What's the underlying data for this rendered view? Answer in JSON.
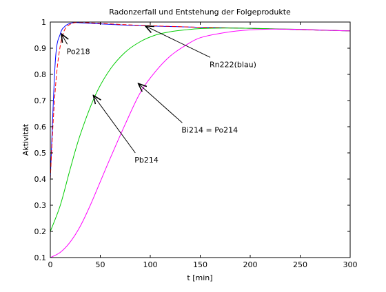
{
  "chart_data": {
    "type": "line",
    "title": "Radonzerfall und Entstehung der Folgeprodukte",
    "xlabel": "t [min]",
    "ylabel": "Aktivität",
    "xlim": [
      0,
      300
    ],
    "ylim": [
      0.1,
      1
    ],
    "xticks": [
      0,
      50,
      100,
      150,
      200,
      250,
      300
    ],
    "yticks": [
      0.1,
      0.2,
      0.3,
      0.4,
      0.5,
      0.6,
      0.7,
      0.8,
      0.9,
      1
    ],
    "xtick_labels": [
      "0",
      "50",
      "100",
      "150",
      "200",
      "250",
      "300"
    ],
    "ytick_labels": [
      "0.1",
      "0.2",
      "0.3",
      "0.4",
      "0.5",
      "0.6",
      "0.7",
      "0.8",
      "0.9",
      "1"
    ],
    "grid": false,
    "legend": "none",
    "series": [
      {
        "color": "#0000ff",
        "dash": "solid",
        "x": [
          0,
          5,
          10,
          15,
          20,
          25,
          30,
          40,
          50,
          75,
          100,
          150,
          200,
          250,
          300
        ],
        "y": [
          0.4,
          0.85,
          0.955,
          0.985,
          0.995,
          0.998,
          0.997,
          0.995,
          0.993,
          0.988,
          0.985,
          0.98,
          0.976,
          0.971,
          0.966
        ]
      },
      {
        "color": "#ff0000",
        "dash": "dashed",
        "x": [
          0,
          2,
          4,
          6,
          8,
          10,
          12,
          15,
          20,
          25,
          30,
          40,
          50,
          75,
          100,
          150,
          200,
          250,
          300
        ],
        "y": [
          0.4,
          0.56,
          0.69,
          0.79,
          0.86,
          0.91,
          0.945,
          0.975,
          0.992,
          0.998,
          0.999,
          0.997,
          0.995,
          0.99,
          0.986,
          0.98,
          0.976,
          0.971,
          0.966
        ]
      },
      {
        "color": "#00cc00",
        "dash": "solid",
        "x": [
          0,
          10,
          20,
          30,
          45,
          60,
          75,
          90,
          105,
          120,
          135,
          150,
          175,
          200,
          225,
          250,
          275,
          300
        ],
        "y": [
          0.2,
          0.3,
          0.44,
          0.57,
          0.72,
          0.82,
          0.885,
          0.925,
          0.95,
          0.963,
          0.97,
          0.975,
          0.977,
          0.976,
          0.974,
          0.972,
          0.969,
          0.966
        ]
      },
      {
        "color": "#ff00ff",
        "dash": "solid",
        "x": [
          0,
          10,
          20,
          30,
          40,
          50,
          60,
          75,
          90,
          105,
          120,
          135,
          150,
          175,
          200,
          225,
          250,
          275,
          300
        ],
        "y": [
          0.1,
          0.12,
          0.16,
          0.22,
          0.3,
          0.39,
          0.48,
          0.61,
          0.73,
          0.81,
          0.87,
          0.91,
          0.94,
          0.96,
          0.97,
          0.973,
          0.972,
          0.969,
          0.966
        ]
      }
    ],
    "annotations": [
      {
        "text": "Po218",
        "from": [
          17,
          0.915
        ],
        "to": [
          11,
          0.955
        ]
      },
      {
        "text": "Rn222(blau)",
        "from": [
          160,
          0.865
        ],
        "to": [
          95,
          0.985
        ]
      },
      {
        "text": "Bi214 = Po214",
        "from": [
          132,
          0.615
        ],
        "to": [
          88,
          0.765
        ]
      },
      {
        "text": "Pb214",
        "from": [
          85,
          0.5
        ],
        "to": [
          43,
          0.72
        ]
      }
    ]
  }
}
